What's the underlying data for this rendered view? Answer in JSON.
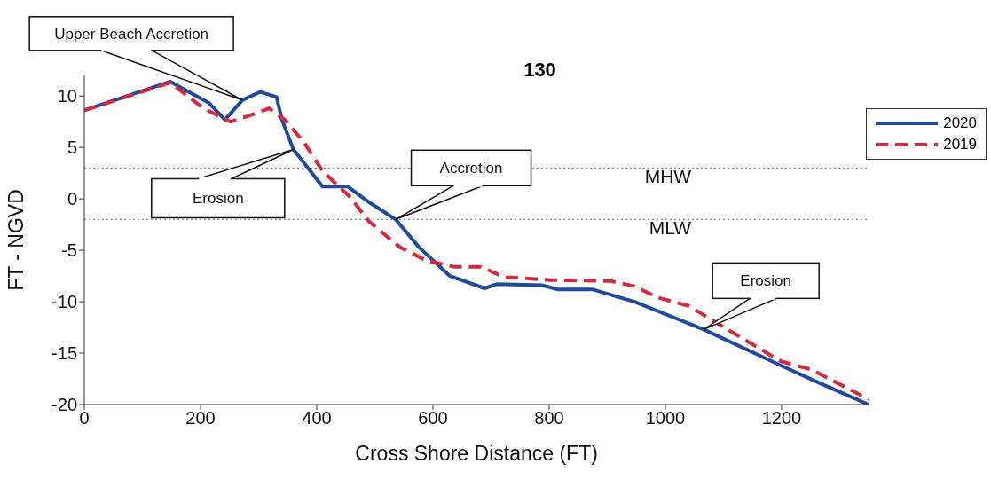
{
  "chart_data": {
    "type": "line",
    "title": "130",
    "xlabel": "Cross Shore Distance (FT)",
    "ylabel": "FT - NGVD",
    "xlim": [
      0,
      1350
    ],
    "xticks": [
      0,
      200,
      400,
      600,
      800,
      1000,
      1200
    ],
    "ylim": [
      -20,
      12
    ],
    "yticks": [
      -20,
      -15,
      -10,
      -5,
      0,
      5,
      10
    ],
    "grid": false,
    "legend": "top right",
    "series": [
      {
        "name": "2020",
        "color": "#1f4aa0",
        "line_style": "solid",
        "x": [
          0,
          148,
          215,
          242,
          272,
          303,
          331,
          340,
          360,
          410,
          453,
          492,
          536,
          576,
          629,
          689,
          709,
          788,
          814,
          874,
          947,
          1066,
          1199,
          1265,
          1350
        ],
        "values": [
          8.6,
          11.4,
          9.3,
          7.7,
          9.6,
          10.4,
          9.9,
          7.7,
          4.8,
          1.2,
          1.2,
          -0.4,
          -2.0,
          -4.7,
          -7.5,
          -8.7,
          -8.3,
          -8.4,
          -8.8,
          -8.8,
          -10.0,
          -12.7,
          -16.2,
          -17.9,
          -20.0
        ]
      },
      {
        "name": "2019",
        "color": "#d62a3c",
        "line_style": "dashed",
        "x": [
          0,
          148,
          205,
          252,
          285,
          318,
          345,
          378,
          410,
          457,
          490,
          543,
          589,
          636,
          682,
          722,
          801,
          907,
          947,
          987,
          1040,
          1119,
          1199,
          1252,
          1350
        ],
        "values": [
          8.6,
          11.3,
          8.8,
          7.5,
          8.1,
          8.8,
          7.7,
          5.5,
          2.7,
          0.2,
          -2.2,
          -4.7,
          -6.0,
          -6.6,
          -6.6,
          -7.6,
          -7.9,
          -8.0,
          -8.5,
          -9.6,
          -10.4,
          -13.1,
          -15.8,
          -16.6,
          -19.5
        ]
      }
    ],
    "ref_lines": [
      {
        "axis": "y",
        "value": 3,
        "label": "MHW",
        "color": "#7080c0",
        "line_style": "dotted"
      },
      {
        "axis": "y",
        "value": -2,
        "label": "MLW",
        "color": "#7080c0",
        "line_style": "dotted"
      }
    ],
    "annotations": [
      {
        "text": "Upper Beach Accretion",
        "x": 272,
        "y": 9.6
      },
      {
        "text": "Erosion",
        "x": 360,
        "y": 4.8
      },
      {
        "text": "Accretion",
        "x": 536,
        "y": -2.0
      },
      {
        "text": "Erosion",
        "x": 1066,
        "y": -12.7
      }
    ]
  }
}
